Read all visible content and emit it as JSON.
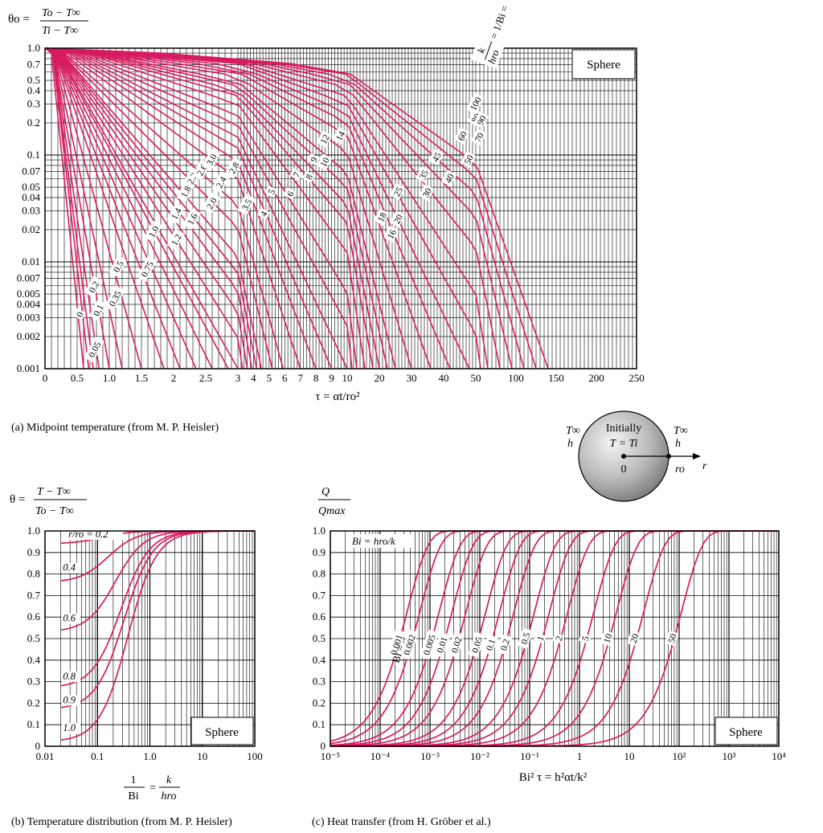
{
  "accent_color": "#d81b60",
  "grid_color": "#000000",
  "chart_data": [
    {
      "type": "line",
      "ylabel_lhs": "θo =",
      "ylabel_num": "To − T∞",
      "ylabel_den": "Ti − T∞",
      "xlabel": "τ = αt/ro²",
      "caption": "(a) Midpoint temperature (from M. P. Heisler)",
      "box_label": "Sphere",
      "param_label_top": "k",
      "param_label_mid": "hro",
      "param_label_eq": "= 1/Bi =",
      "y_scale": "log",
      "y_ticks": [
        "1.0",
        "0.7",
        "0.5",
        "0.4",
        "0.3",
        "0.2",
        "0.1",
        "0.07",
        "0.05",
        "0.04",
        "0.03",
        "0.02",
        "0.01",
        "0.007",
        "0.005",
        "0.004",
        "0.003",
        "0.002",
        "0.001"
      ],
      "x_ticks": [
        "0",
        "0.5",
        "1.0",
        "1.5",
        "2",
        "2.5",
        "3",
        "4",
        "5",
        "6",
        "7",
        "8",
        "9",
        "10",
        "20",
        "30",
        "40",
        "50",
        "100",
        "150",
        "200",
        "250"
      ],
      "x_segments": [
        {
          "from": 0,
          "to": 3
        },
        {
          "from": 3,
          "to": 10
        },
        {
          "from": 10,
          "to": 50
        },
        {
          "from": 50,
          "to": 250
        }
      ],
      "series": [
        {
          "name": "0",
          "y0": 1.0,
          "y1": 0.9,
          "xa": 0.1,
          "x": 0.6
        },
        {
          "name": "0.05",
          "y0": 1.0,
          "y1": 0.9,
          "xa": 0.12,
          "x": 0.68
        },
        {
          "name": "0.1",
          "y0": 1.0,
          "y1": 0.9,
          "xa": 0.12,
          "x": 0.75
        },
        {
          "name": "0.2",
          "y0": 1.0,
          "y1": 0.9,
          "xa": 0.13,
          "x": 0.84
        },
        {
          "name": "0.35",
          "y0": 1.0,
          "y1": 0.9,
          "xa": 0.13,
          "x": 1.0
        },
        {
          "name": "0.5",
          "y0": 1.0,
          "y1": 0.9,
          "xa": 0.14,
          "x": 1.2
        },
        {
          "name": "0.75",
          "y0": 1.0,
          "y1": 0.9,
          "xa": 0.15,
          "x": 1.5
        },
        {
          "name": "1.0",
          "y0": 1.0,
          "y1": 0.9,
          "xa": 0.16,
          "x": 1.85
        },
        {
          "name": "1.2",
          "y0": 1.0,
          "y1": 0.9,
          "xa": 0.17,
          "x": 2.1
        },
        {
          "name": "1.4",
          "y0": 1.0,
          "y1": 0.9,
          "xa": 0.18,
          "x": 2.35
        },
        {
          "name": "1.6",
          "y0": 1.0,
          "y1": 0.9,
          "xa": 0.19,
          "x": 2.6
        },
        {
          "name": "1.8",
          "y0": 1.0,
          "y1": 0.9,
          "xa": 0.2,
          "x": 2.85
        },
        {
          "name": "2.0",
          "y0": 1.0,
          "y1": 0.9,
          "xa": 0.21,
          "x": 3.0
        },
        {
          "name": "2.2",
          "y0": 1.0,
          "y1": 0.9,
          "xa": 0.22,
          "x": 3.3
        },
        {
          "name": "2.4",
          "y0": 1.0,
          "y1": 0.9,
          "xa": 0.23,
          "x": 3.6
        },
        {
          "name": "2.6",
          "y0": 1.0,
          "y1": 0.9,
          "xa": 0.24,
          "x": 3.9
        },
        {
          "name": "2.8",
          "y0": 1.0,
          "y1": 0.9,
          "xa": 0.25,
          "x": 4.2
        },
        {
          "name": "3.0",
          "y0": 1.0,
          "y1": 0.9,
          "xa": 0.26,
          "x": 4.5
        },
        {
          "name": "3.5",
          "y0": 1.0,
          "y1": 0.9,
          "xa": 0.28,
          "x": 5.2
        },
        {
          "name": "4",
          "y0": 1.0,
          "y1": 0.9,
          "xa": 0.3,
          "x": 5.9
        },
        {
          "name": "5",
          "y0": 1.0,
          "y1": 0.9,
          "xa": 0.34,
          "x": 7.0
        },
        {
          "name": "6",
          "y0": 1.0,
          "y1": 0.9,
          "xa": 0.38,
          "x": 8.0
        },
        {
          "name": "7",
          "y0": 1.0,
          "y1": 0.9,
          "xa": 0.42,
          "x": 9.0
        },
        {
          "name": "8",
          "y0": 1.0,
          "y1": 0.9,
          "xa": 0.46,
          "x": 10.0
        },
        {
          "name": "9",
          "y0": 1.0,
          "y1": 0.9,
          "xa": 0.5,
          "x": 11.5
        },
        {
          "name": "10",
          "y0": 1.0,
          "y1": 0.9,
          "xa": 0.55,
          "x": 13.0
        },
        {
          "name": "12",
          "y0": 1.0,
          "y1": 0.9,
          "xa": 0.6,
          "x": 15.5
        },
        {
          "name": "14",
          "y0": 1.0,
          "y1": 0.9,
          "xa": 0.65,
          "x": 18.0
        },
        {
          "name": "16",
          "y0": 1.0,
          "y1": 0.9,
          "xa": 0.7,
          "x": 20.0
        },
        {
          "name": "18",
          "y0": 1.0,
          "y1": 0.9,
          "xa": 0.75,
          "x": 22.5
        },
        {
          "name": "20",
          "y0": 1.0,
          "y1": 0.9,
          "xa": 0.8,
          "x": 25.0
        },
        {
          "name": "25",
          "y0": 1.0,
          "y1": 0.9,
          "xa": 0.85,
          "x": 30.0
        },
        {
          "name": "30",
          "y0": 1.0,
          "y1": 0.9,
          "xa": 0.9,
          "x": 36.0
        },
        {
          "name": "35",
          "y0": 1.0,
          "y1": 0.9,
          "xa": 1.0,
          "x": 42.0
        },
        {
          "name": "40",
          "y0": 1.0,
          "y1": 0.9,
          "xa": 1.1,
          "x": 48.0
        },
        {
          "name": "45",
          "y0": 1.0,
          "y1": 0.9,
          "xa": 1.2,
          "x": 56.0
        },
        {
          "name": "50",
          "y0": 1.0,
          "y1": 0.9,
          "xa": 1.3,
          "x": 65.0
        },
        {
          "name": "60",
          "y0": 1.0,
          "y1": 0.9,
          "xa": 1.4,
          "x": 80.0
        },
        {
          "name": "70",
          "y0": 1.0,
          "y1": 0.9,
          "xa": 1.5,
          "x": 95.0
        },
        {
          "name": "80",
          "y0": 1.0,
          "y1": 0.9,
          "xa": 1.6,
          "x": 110.0
        },
        {
          "name": "90",
          "y0": 1.0,
          "y1": 0.9,
          "xa": 1.7,
          "x": 125.0
        },
        {
          "name": "100",
          "y0": 1.0,
          "y1": 0.9,
          "xa": 1.8,
          "x": 140.0
        }
      ],
      "curve_labels": [
        {
          "text": "0",
          "x": 0.55,
          "y": 0.0032
        },
        {
          "text": "0.05",
          "x": 0.78,
          "y": 0.0015
        },
        {
          "text": "0.1",
          "x": 0.84,
          "y": 0.0035
        },
        {
          "text": "0.2",
          "x": 0.77,
          "y": 0.0058
        },
        {
          "text": "0.35",
          "x": 1.1,
          "y": 0.0045
        },
        {
          "text": "0.5",
          "x": 1.15,
          "y": 0.009
        },
        {
          "text": "0.75",
          "x": 1.6,
          "y": 0.0085
        },
        {
          "text": "1.0",
          "x": 1.7,
          "y": 0.019
        },
        {
          "text": "1.2",
          "x": 2.05,
          "y": 0.016
        },
        {
          "text": "1.4",
          "x": 2.05,
          "y": 0.028
        },
        {
          "text": "1.6",
          "x": 2.3,
          "y": 0.025
        },
        {
          "text": "1.8",
          "x": 2.2,
          "y": 0.045
        },
        {
          "text": "2.0",
          "x": 2.6,
          "y": 0.035
        },
        {
          "text": "2.2",
          "x": 2.3,
          "y": 0.06
        },
        {
          "text": "2.4",
          "x": 2.75,
          "y": 0.055
        },
        {
          "text": "2.6",
          "x": 2.45,
          "y": 0.072
        },
        {
          "text": "2.8",
          "x": 2.95,
          "y": 0.075
        },
        {
          "text": "3.0",
          "x": 2.6,
          "y": 0.09
        },
        {
          "text": "3.5",
          "x": 3.6,
          "y": 0.034
        },
        {
          "text": "4",
          "x": 4.7,
          "y": 0.028
        },
        {
          "text": "5",
          "x": 5.2,
          "y": 0.045
        },
        {
          "text": "6",
          "x": 6.4,
          "y": 0.043
        },
        {
          "text": "7",
          "x": 6.8,
          "y": 0.065
        },
        {
          "text": "8",
          "x": 7.6,
          "y": 0.062
        },
        {
          "text": "9",
          "x": 7.9,
          "y": 0.09
        },
        {
          "text": "10",
          "x": 8.6,
          "y": 0.085
        },
        {
          "text": "12",
          "x": 8.6,
          "y": 0.14
        },
        {
          "text": "14",
          "x": 9.6,
          "y": 0.15
        },
        {
          "text": "16",
          "x": 24.0,
          "y": 0.018
        },
        {
          "text": "18",
          "x": 21.0,
          "y": 0.026
        },
        {
          "text": "20",
          "x": 26.0,
          "y": 0.025
        },
        {
          "text": "25",
          "x": 26.0,
          "y": 0.045
        },
        {
          "text": "30",
          "x": 35.0,
          "y": 0.044
        },
        {
          "text": "35",
          "x": 34.0,
          "y": 0.065
        },
        {
          "text": "40",
          "x": 42.0,
          "y": 0.06
        },
        {
          "text": "45",
          "x": 38.0,
          "y": 0.095
        },
        {
          "text": "50",
          "x": 48.0,
          "y": 0.09
        },
        {
          "text": "60",
          "x": 46.0,
          "y": 0.15
        },
        {
          "text": "70",
          "x": 55.0,
          "y": 0.145
        },
        {
          "text": "80",
          "x": 51.0,
          "y": 0.22
        },
        {
          "text": "90",
          "x": 58.0,
          "y": 0.21
        },
        {
          "text": "100",
          "x": 50.5,
          "y": 0.3
        }
      ]
    },
    {
      "type": "line",
      "ylabel_lhs": "θ =",
      "ylabel_num": "T − T∞",
      "ylabel_den": "To − T∞",
      "xlabel_num": "1",
      "xlabel_den": "Bi",
      "xlabel_eq": "=",
      "xlabel_num2": "k",
      "xlabel_den2": "hro",
      "caption": "(b) Temperature distribution (from M. P. Heisler)",
      "box_label": "Sphere",
      "x_scale": "log",
      "xlim": [
        0.01,
        100
      ],
      "ylim": [
        0,
        1
      ],
      "x_ticks": [
        "0.01",
        "0.1",
        "1.0",
        "10",
        "100"
      ],
      "y_ticks": [
        "1.0",
        "0.9",
        "0.8",
        "0.7",
        "0.6",
        "0.5",
        "0.4",
        "0.3",
        "0.2",
        "0.1",
        "0"
      ],
      "series": [
        {
          "name": "r/ro = 0.2",
          "a": 0.06,
          "b": 0.12
        },
        {
          "name": "0.4",
          "a": 0.24,
          "b": 0.16
        },
        {
          "name": "0.6",
          "a": 0.47,
          "b": 0.22
        },
        {
          "name": "0.8",
          "a": 0.73,
          "b": 0.28
        },
        {
          "name": "0.9",
          "a": 0.83,
          "b": 0.32
        },
        {
          "name": "1.0",
          "a": 0.98,
          "b": 0.38
        }
      ],
      "curve_labels": [
        {
          "text": "r/ro = 0.2",
          "x": 0.028,
          "y": 0.97
        },
        {
          "text": "0.4",
          "x": 0.022,
          "y": 0.815
        },
        {
          "text": "0.6",
          "x": 0.022,
          "y": 0.58
        },
        {
          "text": "0.8",
          "x": 0.022,
          "y": 0.31
        },
        {
          "text": "0.9",
          "x": 0.022,
          "y": 0.2
        },
        {
          "text": "1.0",
          "x": 0.022,
          "y": 0.07
        }
      ]
    },
    {
      "type": "line",
      "ylabel_num": "Q",
      "ylabel_den": "Qmax",
      "xlabel": "Bi² τ = h²αt/k²",
      "caption": "(c) Heat transfer (from H. Gröber et al.)",
      "box_label": "Sphere",
      "header_label": "Bi = hro/k",
      "bi_label": "Bi =",
      "x_scale": "log",
      "xlim": [
        1e-05,
        10000
      ],
      "ylim": [
        0,
        1
      ],
      "x_ticks": [
        "10⁻⁵",
        "10⁻⁴",
        "10⁻³",
        "10⁻²",
        "10⁻¹",
        "1",
        "10",
        "10²",
        "10³",
        "10⁴"
      ],
      "y_ticks": [
        "1.0",
        "0.9",
        "0.8",
        "0.7",
        "0.6",
        "0.5",
        "0.4",
        "0.3",
        "0.2",
        "0.1",
        "0"
      ],
      "series": [
        {
          "name": "0.001",
          "x50": 0.00025
        },
        {
          "name": "0.002",
          "x50": 0.00045
        },
        {
          "name": "0.005",
          "x50": 0.0011
        },
        {
          "name": "0.01",
          "x50": 0.002
        },
        {
          "name": "0.02",
          "x50": 0.0038
        },
        {
          "name": "0.05",
          "x50": 0.0095
        },
        {
          "name": "0.1",
          "x50": 0.018
        },
        {
          "name": "0.2",
          "x50": 0.035
        },
        {
          "name": "0.5",
          "x50": 0.09
        },
        {
          "name": "1",
          "x50": 0.18
        },
        {
          "name": "2",
          "x50": 0.42
        },
        {
          "name": "5",
          "x50": 1.4
        },
        {
          "name": "10",
          "x50": 4.0
        },
        {
          "name": "20",
          "x50": 14.0
        },
        {
          "name": "50",
          "x50": 80.0
        }
      ],
      "curve_labels": [
        {
          "text": "0.001",
          "x": 0.00022,
          "y": 0.47
        },
        {
          "text": "0.002",
          "x": 0.0004,
          "y": 0.47
        },
        {
          "text": "0.005",
          "x": 0.001,
          "y": 0.47
        },
        {
          "text": "0.01",
          "x": 0.0018,
          "y": 0.47
        },
        {
          "text": "0.02",
          "x": 0.0035,
          "y": 0.47
        },
        {
          "text": "0.05",
          "x": 0.009,
          "y": 0.47
        },
        {
          "text": "0.1",
          "x": 0.017,
          "y": 0.47
        },
        {
          "text": "0.2",
          "x": 0.033,
          "y": 0.47
        },
        {
          "text": "0.5",
          "x": 0.085,
          "y": 0.5
        },
        {
          "text": "1",
          "x": 0.17,
          "y": 0.5
        },
        {
          "text": "2",
          "x": 0.4,
          "y": 0.5
        },
        {
          "text": "5",
          "x": 1.35,
          "y": 0.5
        },
        {
          "text": "10",
          "x": 3.8,
          "y": 0.5
        },
        {
          "text": "20",
          "x": 13.0,
          "y": 0.5
        },
        {
          "text": "50",
          "x": 75.0,
          "y": 0.5
        }
      ]
    }
  ],
  "diagram": {
    "initially": "Initially",
    "t_eq": "T = Ti",
    "t_inf_left": "T∞",
    "h_left": "h",
    "t_inf_right": "T∞",
    "h_right": "h",
    "center": "0",
    "ro": "ro",
    "r": "r"
  }
}
